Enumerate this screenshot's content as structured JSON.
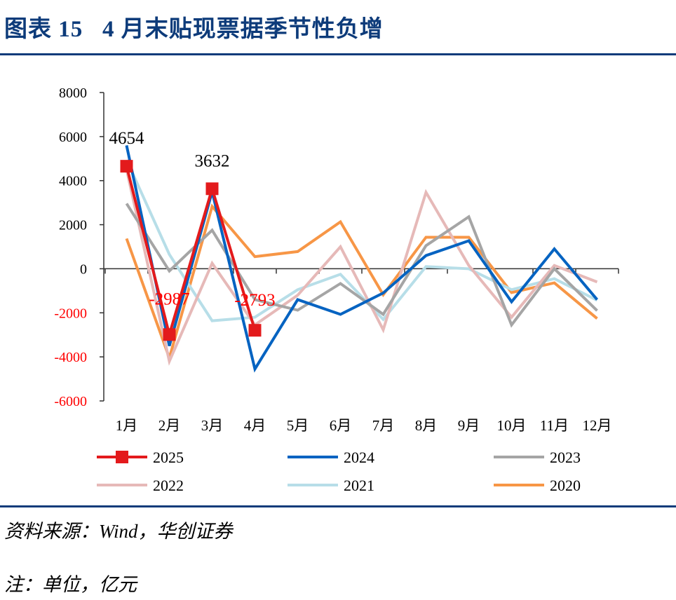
{
  "header": {
    "title": "图表 15   4 月末贴现票据季节性负增"
  },
  "footer": {
    "source": "资料来源：Wind，华创证券",
    "note": "注：单位，亿元"
  },
  "chart_data": {
    "type": "line",
    "title": "",
    "xlabel": "",
    "ylabel": "",
    "ylim": [
      -6000,
      8000
    ],
    "yticks": [
      8000,
      6000,
      4000,
      2000,
      0,
      -2000,
      -4000,
      -6000
    ],
    "negative_tick_color": "#ff0000",
    "categories": [
      "1月",
      "2月",
      "3月",
      "4月",
      "5月",
      "6月",
      "7月",
      "8月",
      "9月",
      "10月",
      "11月",
      "12月"
    ],
    "legend_placement": "bottom",
    "series": [
      {
        "name": "2025",
        "color": "#e31a1c",
        "marker": "square",
        "values": [
          4654,
          -2987,
          3632,
          -2793,
          null,
          null,
          null,
          null,
          null,
          null,
          null,
          null
        ]
      },
      {
        "name": "2024",
        "color": "#0563c1",
        "values": [
          5600,
          -3500,
          3500,
          -4550,
          -1400,
          -2070,
          -1100,
          600,
          1270,
          -1500,
          900,
          -1400
        ]
      },
      {
        "name": "2023",
        "color": "#a5a5a5",
        "values": [
          2960,
          -100,
          1750,
          -1400,
          -1880,
          -670,
          -2070,
          1050,
          2360,
          -2550,
          0,
          -1900
        ]
      },
      {
        "name": "2022",
        "color": "#e6b9b8",
        "values": [
          4500,
          -4200,
          250,
          -2550,
          -1200,
          1000,
          -2770,
          3470,
          150,
          -2200,
          150,
          -600
        ]
      },
      {
        "name": "2021",
        "color": "#b7dee8",
        "values": [
          4940,
          650,
          -2360,
          -2200,
          -950,
          -250,
          -2300,
          100,
          0,
          -950,
          -450,
          -1430
        ]
      },
      {
        "name": "2020",
        "color": "#f79646",
        "values": [
          1370,
          -4050,
          2830,
          550,
          780,
          2130,
          -1180,
          1430,
          1430,
          -1080,
          -640,
          -2260
        ]
      }
    ],
    "data_labels": [
      {
        "series": "2025",
        "category": "1月",
        "text": "4654",
        "color": "#000000"
      },
      {
        "series": "2025",
        "category": "2月",
        "text": "-2987",
        "color": "#ff0000"
      },
      {
        "series": "2025",
        "category": "3月",
        "text": "3632",
        "color": "#000000"
      },
      {
        "series": "2025",
        "category": "4月",
        "text": "-2793",
        "color": "#ff0000"
      }
    ]
  }
}
